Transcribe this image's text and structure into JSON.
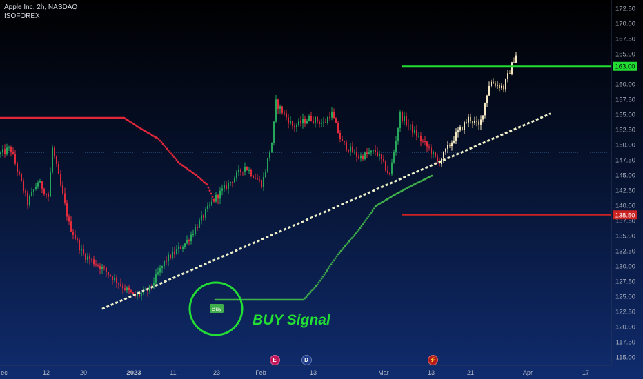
{
  "header": {
    "title": "Apple Inc, 2h, NASDAQ",
    "indicator": "ISOFOREX"
  },
  "event_markers": [
    {
      "letter": "E",
      "color": "#c2185b"
    },
    {
      "letter": "D",
      "color": "#1e3a8a"
    },
    {
      "letter": "⚡",
      "color": "#b71c1c"
    }
  ],
  "chart_data": {
    "type": "candlestick",
    "title": "Apple Inc, 2h, NASDAQ",
    "ylim": [
      114,
      173.5
    ],
    "y_ticks": [
      "172.50",
      "170.00",
      "167.50",
      "165.00",
      "163.00",
      "160.00",
      "157.50",
      "155.00",
      "152.50",
      "150.00",
      "147.50",
      "145.00",
      "142.50",
      "140.00",
      "138.50",
      "137.50",
      "135.00",
      "132.50",
      "130.00",
      "127.50",
      "125.00",
      "122.50",
      "120.00",
      "117.50",
      "115.00"
    ],
    "x_ticks": [
      "ec",
      "12",
      "20",
      "2023",
      "11",
      "23",
      "Feb",
      "13",
      "Mar",
      "13",
      "21",
      "Apr",
      "17"
    ],
    "price_path": [
      {
        "x": 0,
        "close": 148.5
      },
      {
        "x": 15,
        "close": 149.5
      },
      {
        "x": 40,
        "close": 140.5
      },
      {
        "x": 55,
        "close": 144
      },
      {
        "x": 70,
        "close": 141.5
      },
      {
        "x": 76,
        "close": 149.5
      },
      {
        "x": 100,
        "close": 137
      },
      {
        "x": 120,
        "close": 132
      },
      {
        "x": 145,
        "close": 130
      },
      {
        "x": 175,
        "close": 127
      },
      {
        "x": 195,
        "close": 125
      },
      {
        "x": 215,
        "close": 126
      },
      {
        "x": 240,
        "close": 131
      },
      {
        "x": 270,
        "close": 134
      },
      {
        "x": 290,
        "close": 137.5
      },
      {
        "x": 310,
        "close": 141
      },
      {
        "x": 330,
        "close": 143.5
      },
      {
        "x": 355,
        "close": 146.5
      },
      {
        "x": 380,
        "close": 143.5
      },
      {
        "x": 395,
        "close": 151
      },
      {
        "x": 400,
        "close": 157
      },
      {
        "x": 425,
        "close": 153
      },
      {
        "x": 450,
        "close": 154.5
      },
      {
        "x": 470,
        "close": 153.5
      },
      {
        "x": 480,
        "close": 155.5
      },
      {
        "x": 495,
        "close": 150.5
      },
      {
        "x": 520,
        "close": 148
      },
      {
        "x": 545,
        "close": 149
      },
      {
        "x": 565,
        "close": 145
      },
      {
        "x": 580,
        "close": 155
      },
      {
        "x": 605,
        "close": 151.5
      },
      {
        "x": 625,
        "close": 149
      },
      {
        "x": 635,
        "close": 147
      },
      {
        "x": 660,
        "close": 151.5
      },
      {
        "x": 680,
        "close": 154.5
      },
      {
        "x": 695,
        "close": 153
      },
      {
        "x": 710,
        "close": 160.5
      },
      {
        "x": 730,
        "close": 159.5
      },
      {
        "x": 748,
        "close": 165
      }
    ],
    "series": [
      {
        "type": "line",
        "style": "dotted",
        "points": [
          {
            "x": 0,
            "y": 154.5
          },
          {
            "x": 180,
            "y": 154.5
          },
          {
            "x": 200,
            "y": 153
          },
          {
            "x": 230,
            "y": 151
          },
          {
            "x": 260,
            "y": 147
          },
          {
            "x": 285,
            "y": 145
          },
          {
            "x": 300,
            "y": 143.5
          },
          {
            "x": 312,
            "y": 140.5
          }
        ]
      },
      {
        "type": "line",
        "style": "dotted",
        "points": [
          {
            "x": 312,
            "y": 124.5
          },
          {
            "x": 320,
            "y": 124.5
          },
          {
            "x": 440,
            "y": 124.5
          },
          {
            "x": 460,
            "y": 127
          },
          {
            "x": 490,
            "y": 132
          },
          {
            "x": 520,
            "y": 136
          },
          {
            "x": 545,
            "y": 140
          },
          {
            "x": 575,
            "y": 142
          },
          {
            "x": 600,
            "y": 143.5
          },
          {
            "x": 627,
            "y": 145
          }
        ]
      }
    ],
    "trendline": {
      "from": {
        "x": 148,
        "y": 123
      },
      "to": {
        "x": 798,
        "y": 155.2
      }
    },
    "levels": [
      {
        "label": "163.00",
        "value": 163,
        "color": "#22dd33"
      },
      {
        "label": "138.50",
        "value": 138.5,
        "color": "#cc2222"
      }
    ],
    "reference_value": 148.8,
    "annotations": {
      "buy_label": "Buy",
      "buy_signal_text": "BUY Signal"
    }
  }
}
